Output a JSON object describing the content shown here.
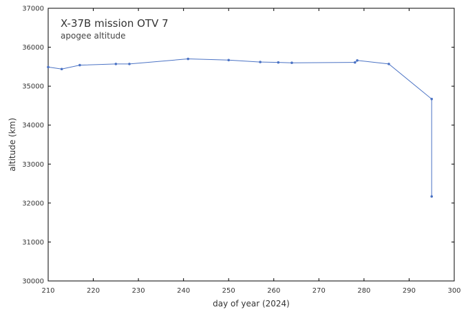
{
  "chart_data": {
    "type": "line",
    "title": "X-37B mission OTV 7",
    "subtitle": "apogee altitude",
    "xlabel": "day of year (2024)",
    "ylabel": "altitude (km)",
    "xlim": [
      210,
      300
    ],
    "ylim": [
      30000,
      37000
    ],
    "x_ticks": [
      210,
      220,
      230,
      240,
      250,
      260,
      270,
      280,
      290,
      300
    ],
    "y_ticks": [
      30000,
      31000,
      32000,
      33000,
      34000,
      35000,
      36000,
      37000
    ],
    "grid": false,
    "series": [
      {
        "name": "apogee altitude",
        "color": "#4a72c4",
        "x": [
          210,
          213,
          217,
          225,
          228,
          241,
          250,
          257,
          261,
          264,
          278,
          278.5,
          285.5,
          295,
          295
        ],
        "y": [
          35490,
          35440,
          35540,
          35570,
          35570,
          35700,
          35670,
          35620,
          35610,
          35600,
          35610,
          35660,
          35570,
          34670,
          32170
        ]
      }
    ]
  }
}
